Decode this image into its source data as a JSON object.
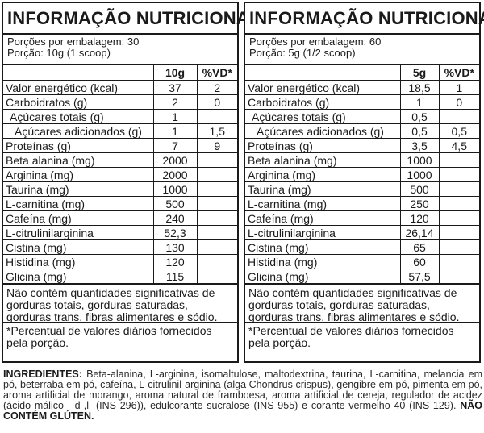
{
  "left": {
    "title": "INFORMAÇÃO NUTRICIONAL",
    "servings_per_package": "Porções por embalagem: 30",
    "serving": "Porção: 10g (1 scoop)",
    "col_amount": "10g",
    "col_vd": "%VD*",
    "rows": [
      {
        "name": "Valor energético (kcal)",
        "amount": "37",
        "vd": "2",
        "indent": 0
      },
      {
        "name": "Carboidratos (g)",
        "amount": "2",
        "vd": "0",
        "indent": 0
      },
      {
        "name": "Açúcares totais (g)",
        "amount": "1",
        "vd": "",
        "indent": 1
      },
      {
        "name": "Açúcares adicionados (g)",
        "amount": "1",
        "vd": "1,5",
        "indent": 2
      },
      {
        "name": "Proteínas (g)",
        "amount": "7",
        "vd": "9",
        "indent": 0
      },
      {
        "name": "Beta alanina (mg)",
        "amount": "2000",
        "vd": "",
        "indent": 0
      },
      {
        "name": "Arginina (mg)",
        "amount": "2000",
        "vd": "",
        "indent": 0
      },
      {
        "name": "Taurina (mg)",
        "amount": "1000",
        "vd": "",
        "indent": 0
      },
      {
        "name": "L-carnitina (mg)",
        "amount": "500",
        "vd": "",
        "indent": 0
      },
      {
        "name": "Cafeína (mg)",
        "amount": "240",
        "vd": "",
        "indent": 0
      },
      {
        "name": "L-citrulinilarginina",
        "amount": "52,3",
        "vd": "",
        "indent": 0
      },
      {
        "name": "Cistina (mg)",
        "amount": "130",
        "vd": "",
        "indent": 0
      },
      {
        "name": "Histidina (mg)",
        "amount": "120",
        "vd": "",
        "indent": 0
      },
      {
        "name": "Glicina (mg)",
        "amount": "115",
        "vd": "",
        "indent": 0
      }
    ],
    "note": "Não contém quantidades significativas de gorduras totais, gorduras saturadas, gorduras trans, fibras alimentares e sódio.",
    "footnote": "*Percentual de valores diários fornecidos pela porção."
  },
  "right": {
    "title": "INFORMAÇÃO NUTRICIONAL",
    "servings_per_package": "Porções por embalagem: 60",
    "serving": "Porção: 5g (1/2 scoop)",
    "col_amount": "5g",
    "col_vd": "%VD*",
    "rows": [
      {
        "name": "Valor energético (kcal)",
        "amount": "18,5",
        "vd": "1",
        "indent": 0
      },
      {
        "name": "Carboidratos (g)",
        "amount": "1",
        "vd": "0",
        "indent": 0
      },
      {
        "name": "Açúcares totais (g)",
        "amount": "0,5",
        "vd": "",
        "indent": 1
      },
      {
        "name": "Açúcares adicionados (g)",
        "amount": "0,5",
        "vd": "0,5",
        "indent": 2
      },
      {
        "name": "Proteínas (g)",
        "amount": "3,5",
        "vd": "4,5",
        "indent": 0
      },
      {
        "name": "Beta alanina (mg)",
        "amount": "1000",
        "vd": "",
        "indent": 0
      },
      {
        "name": "Arginina (mg)",
        "amount": "1000",
        "vd": "",
        "indent": 0
      },
      {
        "name": "Taurina (mg)",
        "amount": "500",
        "vd": "",
        "indent": 0
      },
      {
        "name": "L-carnitina (mg)",
        "amount": "250",
        "vd": "",
        "indent": 0
      },
      {
        "name": "Cafeína (mg)",
        "amount": "120",
        "vd": "",
        "indent": 0
      },
      {
        "name": "L-citrulinilarginina",
        "amount": "26,14",
        "vd": "",
        "indent": 0
      },
      {
        "name": "Cistina (mg)",
        "amount": "65",
        "vd": "",
        "indent": 0
      },
      {
        "name": "Histidina (mg)",
        "amount": "60",
        "vd": "",
        "indent": 0
      },
      {
        "name": "Glicina (mg)",
        "amount": "57,5",
        "vd": "",
        "indent": 0
      }
    ],
    "note": "Não contém quantidades significativas de gorduras totais, gorduras saturadas, gorduras trans, fibras alimentares e sódio.",
    "footnote": "*Percentual de valores diários fornecidos pela porção."
  },
  "ingredients": {
    "label": "INGREDIENTES:",
    "text": "Beta-alanina, L-arginina, isomaltulose, maltodextrina, taurina, L-carnitina, melancia em pó, beterraba em pó, cafeína, L-citrulinil-arginina (alga Chondrus crispus), gengibre em pó, pimenta em pó, aroma artificial de morango, aroma natural de framboesa, aroma artificial de cereja, regulador de acidez (ácido málico - d-,l- (INS 296)), edulcorante sucralose (INS 955) e corante vermelho 40 (INS 129).",
    "gluten": "NÃO CONTÉM GLÚTEN."
  }
}
